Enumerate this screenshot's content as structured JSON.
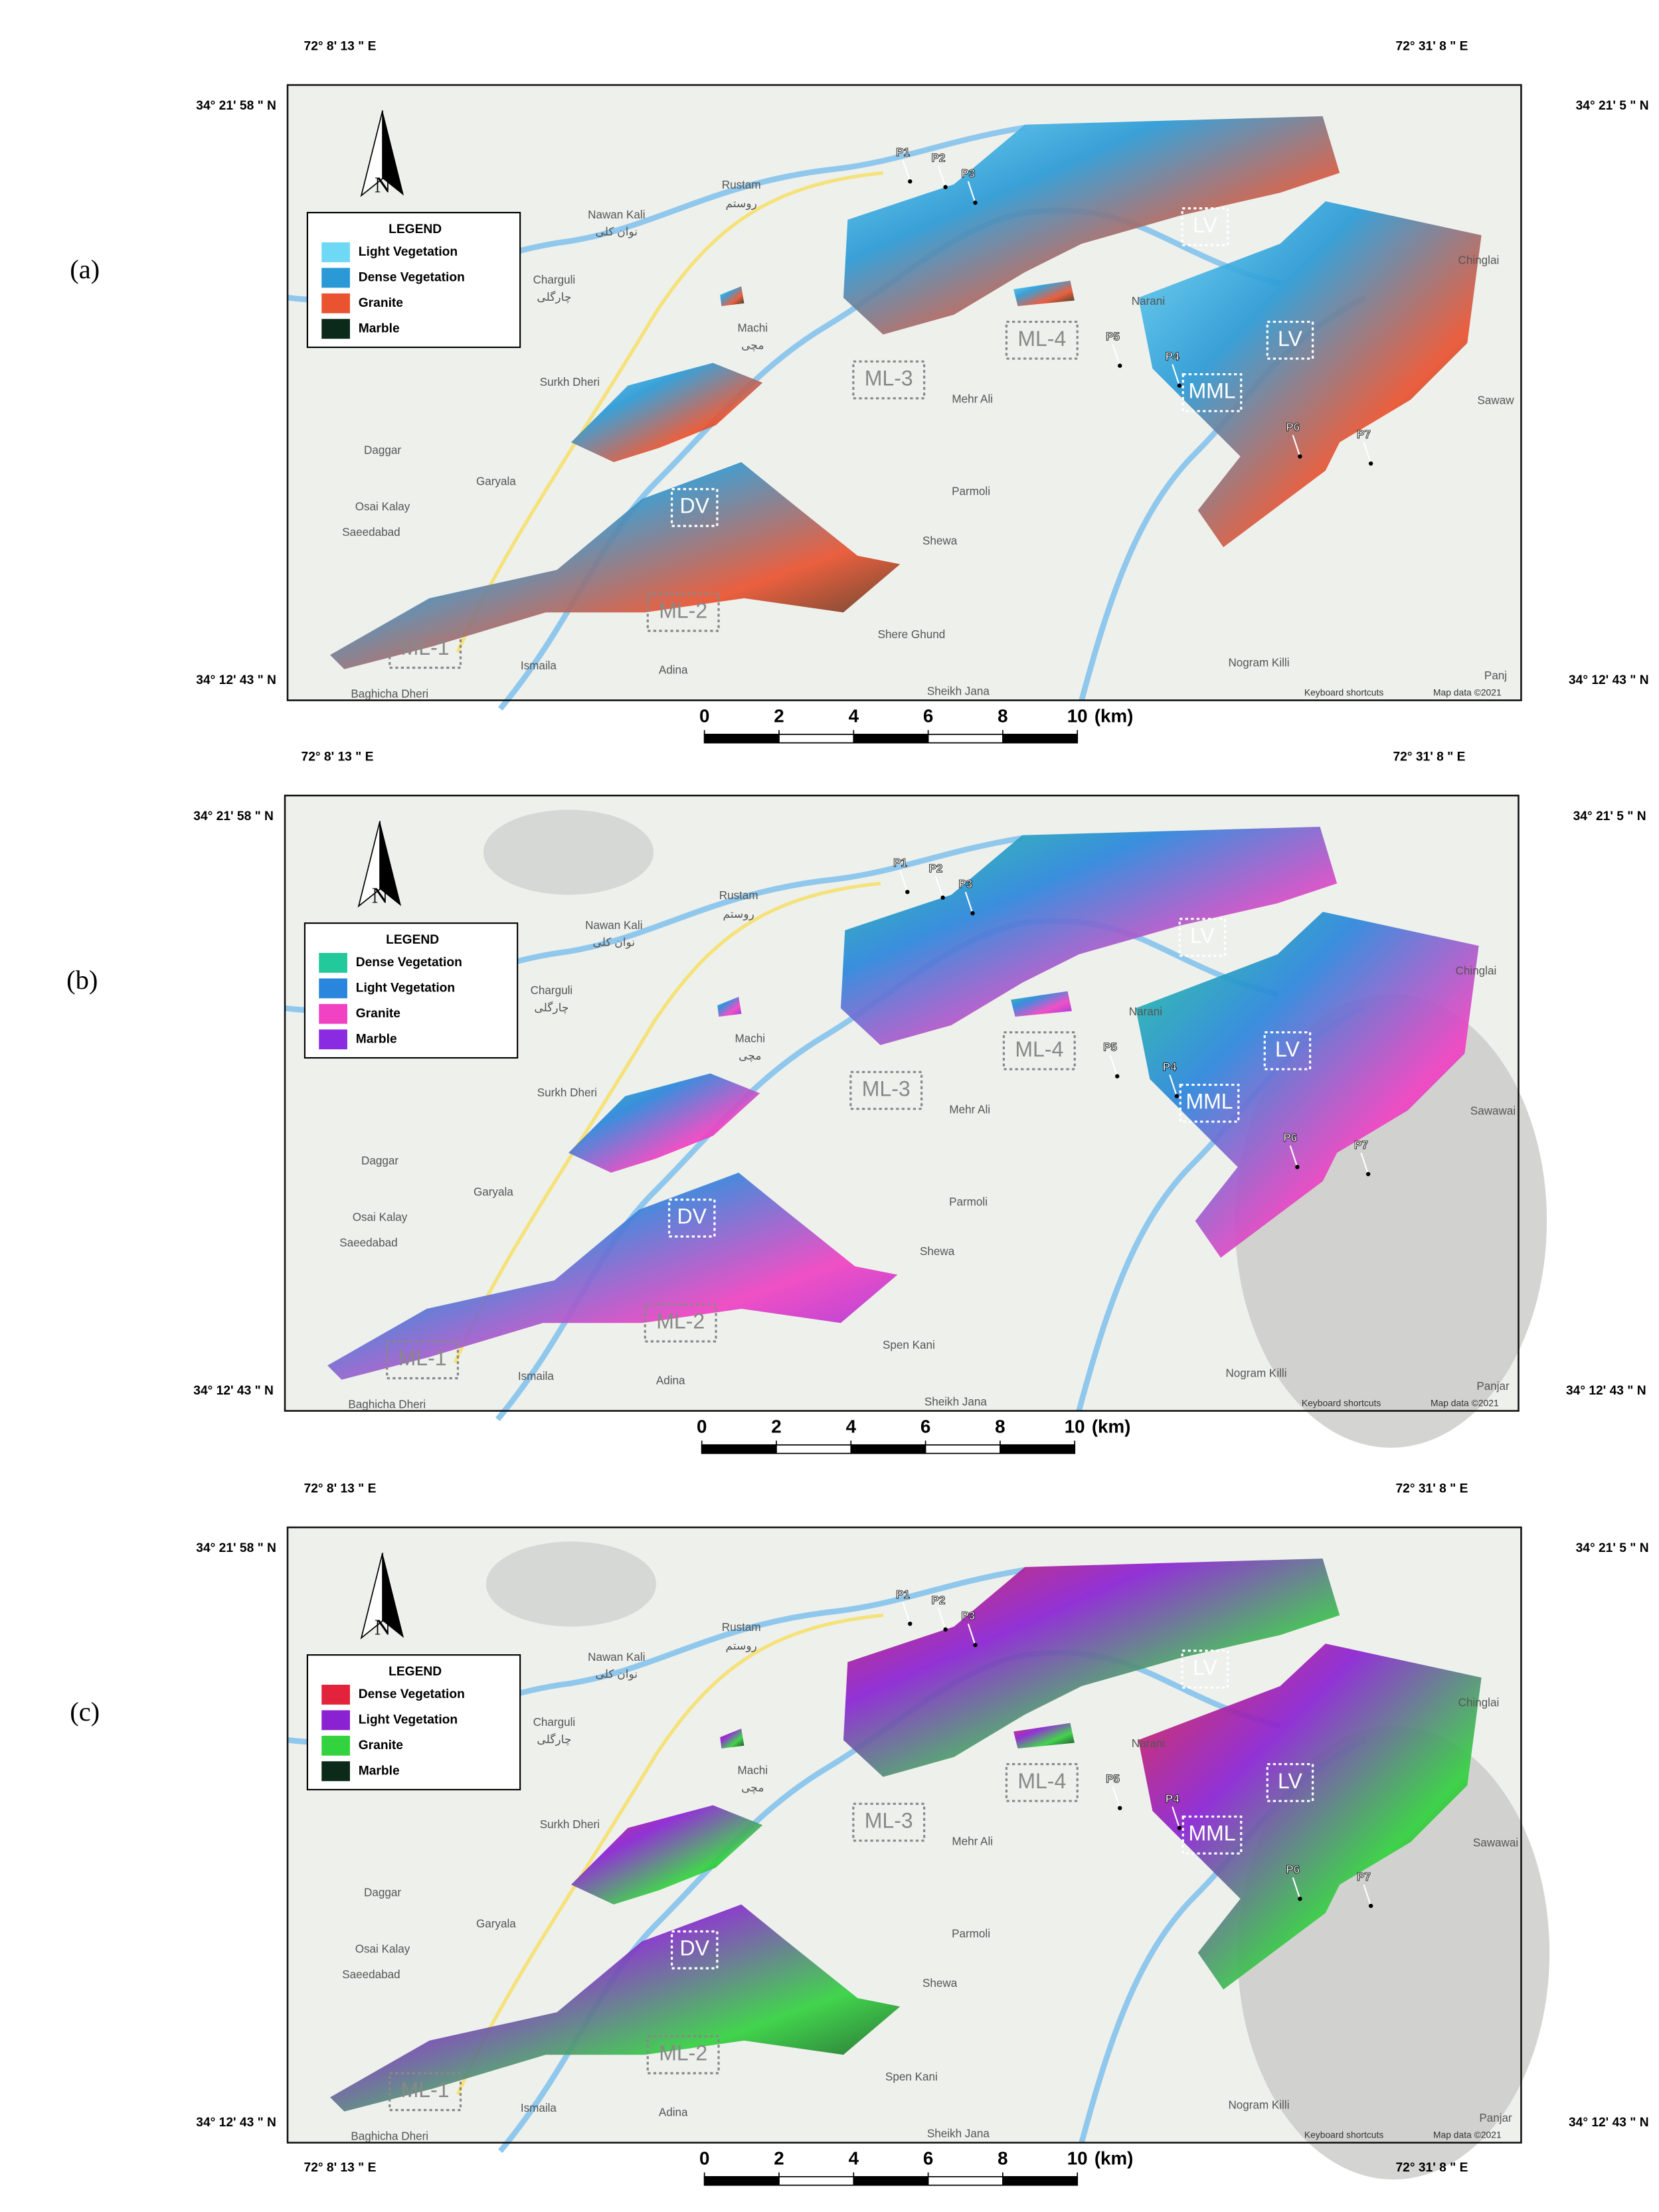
{
  "panels": [
    {
      "label": "(a)",
      "lon_left": "72° 8' 13 \" E",
      "lon_right": "72° 31' 8 \" E",
      "lat_top_left": "34° 21' 58 \" N",
      "lat_top_right": "34° 21' 5 \" N",
      "lat_bottom_left": "34° 12' 43 \" N",
      "lat_bottom_right": "34° 12' 43 \" N",
      "north": "N",
      "legend": {
        "title": "LEGEND",
        "items": [
          {
            "name": "Light Vegetation",
            "color": "#6fd8f4"
          },
          {
            "name": "Dense Vegetation",
            "color": "#2a9ad6"
          },
          {
            "name": "Granite",
            "color": "#ea5330"
          },
          {
            "name": "Marble",
            "color": "#0b2a1a"
          }
        ]
      },
      "regions": [
        "LV",
        "LV",
        "MML",
        "DV",
        "ML-1",
        "ML-2",
        "ML-3",
        "ML-4"
      ],
      "points": [
        "P1",
        "P2",
        "P3",
        "P4",
        "P5",
        "P6",
        "P7"
      ],
      "places": [
        "Rustam",
        "روستم",
        "Nawan Kali",
        "نوان کلی",
        "Charguli",
        "چارگلی",
        "Machi",
        "مچی",
        "Surkh Dheri",
        "Daggar",
        "Garyala",
        "Osai Kalay",
        "Saeedabad",
        "Shewa",
        "Parmoli",
        "Mehr Ali",
        "Ismaila",
        "Adina",
        "Sheikh Jana",
        "Nogram Killi",
        "Chinglai",
        "Sawaw",
        "Narani",
        "Baghicha Dheri",
        "Shere Ghund",
        "Panj"
      ],
      "attribution": [
        "Keyboard shortcuts",
        "Map data ©2021"
      ],
      "scale": {
        "ticks": [
          0,
          2,
          4,
          6,
          8,
          10
        ],
        "unit": "(km)"
      }
    },
    {
      "label": "(b)",
      "lon_left": "72° 8' 13 \" E",
      "lon_right": "72° 31' 8 \" E",
      "lat_top_left": "34° 21' 58 \" N",
      "lat_top_right": "34° 21' 5 \" N",
      "lat_bottom_left": "34° 12' 43 \" N",
      "lat_bottom_right": "34° 12' 43 \" N",
      "north": "N",
      "legend": {
        "title": "LEGEND",
        "items": [
          {
            "name": "Dense Vegetation",
            "color": "#22c99a"
          },
          {
            "name": "Light Vegetation",
            "color": "#2a86dc"
          },
          {
            "name": "Granite",
            "color": "#f042c2"
          },
          {
            "name": "Marble",
            "color": "#8a2be2"
          }
        ]
      },
      "regions": [
        "LV",
        "LV",
        "MML",
        "DV",
        "ML-1",
        "ML-2",
        "ML-3",
        "ML-4"
      ],
      "points": [
        "P1",
        "P2",
        "P3",
        "P4",
        "P5",
        "P6",
        "P7"
      ],
      "places": [
        "Rustam",
        "روستم",
        "Nawan Kali",
        "نوان کلی",
        "Charguli",
        "چارگلی",
        "Machi",
        "مچی",
        "Surkh Dheri",
        "Daggar",
        "Garyala",
        "Osai Kalay",
        "Saeedabad",
        "Shewa",
        "Parmoli",
        "Mehr Ali",
        "Ismaila",
        "Adina",
        "Sheikh Jana",
        "Nogram Killi",
        "Chinglai",
        "Sawawai",
        "Narani",
        "Baghicha Dheri",
        "Spen Kani",
        "Panjar"
      ],
      "attribution": [
        "Keyboard shortcuts",
        "Map data ©2021"
      ],
      "scale": {
        "ticks": [
          0,
          2,
          4,
          6,
          8,
          10
        ],
        "unit": "(km)"
      }
    },
    {
      "label": "(c)",
      "lon_left": "72° 8' 13 \" E",
      "lon_right": "72° 31' 8 \" E",
      "lat_top_left": "34° 21' 58 \" N",
      "lat_top_right": "34° 21' 5 \" N",
      "lat_bottom_left": "34° 12' 43 \" N",
      "lat_bottom_right": "34° 12' 43 \" N",
      "lon_bottom_left": "72° 8' 13 \" E",
      "lon_bottom_right": "72° 31' 8 \" E",
      "north": "N",
      "legend": {
        "title": "LEGEND",
        "items": [
          {
            "name": "Dense Vegetation",
            "color": "#e3223c"
          },
          {
            "name": "Light Vegetation",
            "color": "#8a22d4"
          },
          {
            "name": "Granite",
            "color": "#33d23f"
          },
          {
            "name": "Marble",
            "color": "#0b2a1a"
          }
        ]
      },
      "regions": [
        "LV",
        "LV",
        "MML",
        "DV",
        "ML-1",
        "ML-2",
        "ML-3",
        "ML-4"
      ],
      "points": [
        "P1",
        "P2",
        "P3",
        "P4",
        "P5",
        "P6",
        "P7"
      ],
      "places": [
        "Rustam",
        "روستم",
        "Nawan Kali",
        "نوان کلی",
        "Charguli",
        "چارگلی",
        "Machi",
        "مچی",
        "Surkh Dheri",
        "Daggar",
        "Garyala",
        "Osai Kalay",
        "Saeedabad",
        "Shewa",
        "Parmoli",
        "Mehr Ali",
        "Ismaila",
        "Adina",
        "Sheikh Jana",
        "Nogram Killi",
        "Chinglai",
        "Sawawai",
        "Narani",
        "Baghicha Dheri",
        "Spen Kani",
        "Panjar"
      ],
      "attribution": [
        "Keyboard shortcuts",
        "Map data ©2021"
      ],
      "scale": {
        "ticks": [
          0,
          2,
          4,
          6,
          8,
          10
        ],
        "unit": "(km)"
      }
    }
  ]
}
